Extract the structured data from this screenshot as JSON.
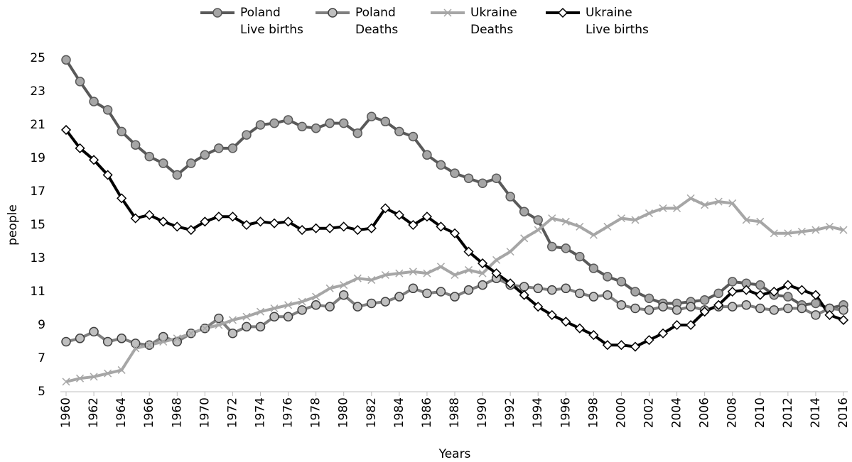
{
  "chart_data": {
    "type": "line",
    "x_label": "Years",
    "y_label": "people",
    "x": [
      1960,
      1961,
      1962,
      1963,
      1964,
      1965,
      1966,
      1967,
      1968,
      1969,
      1970,
      1971,
      1972,
      1973,
      1974,
      1975,
      1976,
      1977,
      1978,
      1979,
      1980,
      1981,
      1982,
      1983,
      1984,
      1985,
      1986,
      1987,
      1988,
      1989,
      1990,
      1991,
      1992,
      1993,
      1994,
      1995,
      1996,
      1997,
      1998,
      1999,
      2000,
      2001,
      2002,
      2003,
      2004,
      2005,
      2006,
      2007,
      2008,
      2009,
      2010,
      2011,
      2012,
      2013,
      2014,
      2015,
      2016
    ],
    "xlim": [
      1960,
      2016
    ],
    "xticks": [
      1960,
      1962,
      1964,
      1966,
      1968,
      1970,
      1972,
      1974,
      1976,
      1978,
      1980,
      1982,
      1984,
      1986,
      1988,
      1990,
      1992,
      1994,
      1996,
      1998,
      2000,
      2002,
      2004,
      2006,
      2008,
      2010,
      2012,
      2014,
      2016
    ],
    "ylim": [
      5,
      25
    ],
    "yticks": [
      5,
      7,
      9,
      11,
      13,
      15,
      17,
      19,
      21,
      23,
      25
    ],
    "grid": false,
    "legend": "top",
    "series": [
      {
        "name": "Poland Live births",
        "color": "#595959",
        "marker": "circle",
        "marker_fill": "#a6a6a6",
        "values": [
          24.9,
          23.6,
          22.4,
          21.9,
          20.6,
          19.8,
          19.1,
          18.7,
          18.0,
          18.7,
          19.2,
          19.6,
          19.6,
          20.4,
          21.0,
          21.1,
          21.3,
          20.9,
          20.8,
          21.1,
          21.1,
          20.5,
          21.5,
          21.2,
          20.6,
          20.3,
          19.2,
          18.6,
          18.1,
          17.8,
          17.5,
          17.8,
          16.7,
          15.8,
          15.3,
          13.7,
          13.6,
          13.1,
          12.4,
          11.9,
          11.6,
          11.0,
          10.6,
          10.3,
          10.3,
          10.4,
          10.5,
          10.9,
          11.6,
          11.5,
          11.4,
          10.8,
          10.7,
          10.2,
          10.3,
          10.0,
          10.2
        ]
      },
      {
        "name": "Poland Deaths",
        "color": "#7f7f7f",
        "marker": "circle",
        "marker_fill": "#bfbfbf",
        "marker_stroke": "#404040",
        "values": [
          8.0,
          8.2,
          8.6,
          8.0,
          8.2,
          7.9,
          7.8,
          8.3,
          8.0,
          8.5,
          8.8,
          9.4,
          8.5,
          8.9,
          8.9,
          9.5,
          9.5,
          9.9,
          10.2,
          10.1,
          10.8,
          10.1,
          10.3,
          10.4,
          10.7,
          11.2,
          10.9,
          11.0,
          10.7,
          11.1,
          11.4,
          11.8,
          11.4,
          11.3,
          11.2,
          11.1,
          11.2,
          10.9,
          10.7,
          10.8,
          10.2,
          10.0,
          9.9,
          10.1,
          9.9,
          10.1,
          9.9,
          10.1,
          10.1,
          10.2,
          10.0,
          9.9,
          10.0,
          10.0,
          9.6,
          10.0,
          9.9
        ]
      },
      {
        "name": "Ukraine Deaths",
        "color": "#a6a6a6",
        "marker": "x",
        "values": [
          5.6,
          5.8,
          5.9,
          6.1,
          6.3,
          7.6,
          7.8,
          8.0,
          8.2,
          8.5,
          8.8,
          9.0,
          9.3,
          9.5,
          9.8,
          10.0,
          10.2,
          10.4,
          10.7,
          11.2,
          11.4,
          11.8,
          11.7,
          12.0,
          12.1,
          12.2,
          12.1,
          12.5,
          12.0,
          12.3,
          12.1,
          12.9,
          13.4,
          14.2,
          14.7,
          15.4,
          15.2,
          14.9,
          14.4,
          14.9,
          15.4,
          15.3,
          15.7,
          16.0,
          16.0,
          16.6,
          16.2,
          16.4,
          16.3,
          15.3,
          15.2,
          14.5,
          14.5,
          14.6,
          14.7,
          14.9,
          14.7
        ]
      },
      {
        "name": "Ukraine Live births",
        "color": "#000000",
        "marker": "diamond",
        "marker_fill": "#ffffff",
        "values": [
          20.7,
          19.6,
          18.9,
          18.0,
          16.6,
          15.4,
          15.6,
          15.2,
          14.9,
          14.7,
          15.2,
          15.5,
          15.5,
          15.0,
          15.2,
          15.1,
          15.2,
          14.7,
          14.8,
          14.8,
          14.9,
          14.7,
          14.8,
          16.0,
          15.6,
          15.0,
          15.5,
          14.9,
          14.5,
          13.4,
          12.7,
          12.1,
          11.5,
          10.8,
          10.1,
          9.6,
          9.2,
          8.8,
          8.4,
          7.8,
          7.8,
          7.7,
          8.1,
          8.5,
          9.0,
          9.0,
          9.8,
          10.2,
          11.0,
          11.1,
          10.8,
          11.0,
          11.4,
          11.1,
          10.8,
          9.6,
          9.3
        ]
      }
    ]
  }
}
